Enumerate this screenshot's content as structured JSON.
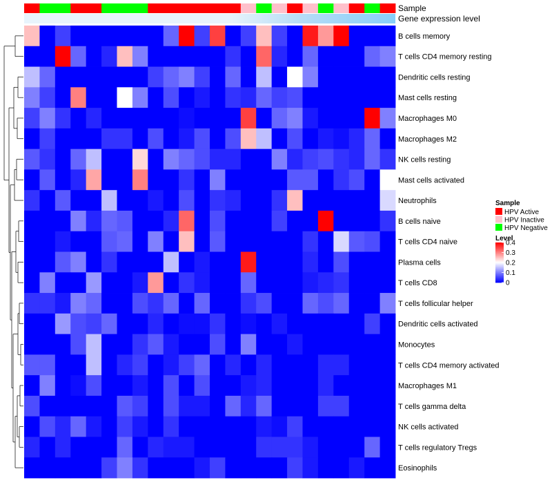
{
  "chart_data": {
    "type": "heatmap",
    "title": "",
    "annotation_titles": [
      "Sample",
      "Gene expression level"
    ],
    "sample_groups": [
      "Active",
      "Negative",
      "Negative",
      "Active",
      "Active",
      "Negative",
      "Negative",
      "Negative",
      "Active",
      "Active",
      "Active",
      "Active",
      "Active",
      "Active",
      "Inactive",
      "Negative",
      "Inactive",
      "Active",
      "Inactive",
      "Negative",
      "Inactive",
      "Active",
      "Negative",
      "Active"
    ],
    "rows": [
      "B cells memory",
      "T cells CD4 memory resting",
      "Dendritic cells resting",
      "Mast cells resting",
      "Macrophages M0",
      "Macrophages M2",
      "NK cells resting",
      "Mast cells activated",
      "Neutrophils",
      "B cells naive",
      "T cells CD4 naive",
      "Plasma cells",
      "T cells CD8",
      "T cells follicular helper",
      "Dendritic cells activated",
      "Monocytes",
      "T cells CD4 memory activated",
      "Macrophages M1",
      "T cells gamma delta",
      "NK cells activated",
      "T cells regulatory  Tregs",
      "Eosinophils"
    ],
    "values": [
      [
        0.25,
        0,
        0.05,
        0,
        0,
        0,
        0,
        0,
        0,
        0.08,
        0.4,
        0.05,
        0.35,
        0,
        0.05,
        0.25,
        0.05,
        0,
        0.38,
        0.28,
        0.4,
        0,
        0,
        0
      ],
      [
        0,
        0,
        0.4,
        0.08,
        0,
        0.03,
        0.25,
        0.1,
        0,
        0,
        0,
        0,
        0,
        0.04,
        0,
        0.32,
        0.03,
        0,
        0.08,
        0,
        0,
        0,
        0.08,
        0.1
      ],
      [
        0.15,
        0.08,
        0,
        0,
        0,
        0,
        0,
        0,
        0.05,
        0.08,
        0.1,
        0.05,
        0,
        0.08,
        0,
        0.15,
        0,
        0.2,
        0.1,
        0,
        0,
        0,
        0,
        0
      ],
      [
        0.1,
        0.05,
        0,
        0.3,
        0,
        0,
        0.2,
        0.1,
        0,
        0.06,
        0,
        0.02,
        0,
        0.04,
        0.03,
        0.08,
        0.05,
        0.06,
        0,
        0,
        0,
        0,
        0,
        0
      ],
      [
        0.05,
        0.1,
        0.04,
        0,
        0.03,
        0,
        0,
        0,
        0,
        0,
        0.01,
        0,
        0,
        0,
        0.35,
        0,
        0.08,
        0.1,
        0.02,
        0,
        0,
        0,
        0.4,
        0.1
      ],
      [
        0,
        0.05,
        0,
        0,
        0,
        0.04,
        0.04,
        0,
        0.06,
        0,
        0.02,
        0.06,
        0,
        0.06,
        0.25,
        0.15,
        0,
        0.06,
        0,
        0.02,
        0.01,
        0.03,
        0.08,
        0
      ],
      [
        0.07,
        0.04,
        0,
        0.08,
        0.15,
        0,
        0,
        0.23,
        0,
        0.1,
        0.08,
        0.06,
        0.03,
        0.03,
        0,
        0,
        0.1,
        0.03,
        0.05,
        0.06,
        0.04,
        0.03,
        0.08,
        0.04
      ],
      [
        0,
        0.07,
        0,
        0.03,
        0.27,
        0,
        0,
        0.3,
        0,
        0,
        0.04,
        0,
        0.1,
        0,
        0,
        0,
        0,
        0.07,
        0.07,
        0,
        0.04,
        0.06,
        0,
        0.2
      ],
      [
        0.04,
        0,
        0.07,
        0,
        0,
        0.15,
        0,
        0,
        0.02,
        0,
        0.06,
        0,
        0.04,
        0.03,
        0,
        0,
        0.04,
        0.25,
        0,
        0,
        0,
        0,
        0,
        0.17
      ],
      [
        0,
        0,
        0,
        0.1,
        0.03,
        0.08,
        0.07,
        0,
        0,
        0.03,
        0.32,
        0,
        0.06,
        0,
        0,
        0,
        0.05,
        0,
        0,
        0.4,
        0,
        0,
        0,
        0.04
      ],
      [
        0,
        0,
        0.02,
        0,
        0,
        0.07,
        0.08,
        0,
        0.1,
        0,
        0.25,
        0,
        0.07,
        0,
        0,
        0,
        0,
        0,
        0.04,
        0,
        0.17,
        0.07,
        0.06,
        0
      ],
      [
        0,
        0,
        0.07,
        0.1,
        0,
        0.04,
        0,
        0,
        0,
        0.15,
        0,
        0.02,
        0,
        0,
        0.38,
        0,
        0,
        0,
        0.03,
        0,
        0.06,
        0,
        0,
        0
      ],
      [
        0,
        0.1,
        0,
        0,
        0.12,
        0,
        0,
        0.02,
        0.28,
        0,
        0.04,
        0.02,
        0,
        0,
        0.08,
        0,
        0,
        0,
        0.02,
        0.03,
        0.04,
        0,
        0,
        0
      ],
      [
        0.04,
        0.04,
        0.02,
        0.1,
        0.08,
        0,
        0,
        0.06,
        0.04,
        0.08,
        0,
        0.08,
        0,
        0,
        0.04,
        0.06,
        0,
        0,
        0.08,
        0.06,
        0.08,
        0,
        0,
        0.1
      ],
      [
        0,
        0,
        0.12,
        0.06,
        0.05,
        0.08,
        0,
        0,
        0.03,
        0,
        0.01,
        0.01,
        0.04,
        0,
        0.01,
        0,
        0.02,
        0,
        0,
        0,
        0,
        0,
        0.05,
        0
      ],
      [
        0,
        0,
        0,
        0.06,
        0.15,
        0,
        0,
        0.04,
        0.07,
        0.02,
        0,
        0,
        0.06,
        0,
        0.1,
        0,
        0,
        0.02,
        0,
        0,
        0,
        0,
        0,
        0
      ],
      [
        0.07,
        0.07,
        0,
        0,
        0.15,
        0,
        0.03,
        0.05,
        0,
        0.02,
        0.05,
        0.08,
        0,
        0.03,
        0,
        0.03,
        0,
        0,
        0,
        0.03,
        0.03,
        0,
        0,
        0
      ],
      [
        0,
        0.1,
        0,
        0.01,
        0.06,
        0,
        0,
        0.02,
        0,
        0.06,
        0,
        0.06,
        0,
        0,
        0.02,
        0.03,
        0,
        0,
        0,
        0.03,
        0,
        0,
        0,
        0
      ],
      [
        0.06,
        0,
        0,
        0,
        0,
        0,
        0.07,
        0.05,
        0,
        0.06,
        0.02,
        0.02,
        0,
        0.08,
        0.03,
        0.08,
        0,
        0,
        0,
        0.05,
        0.05,
        0,
        0,
        0
      ],
      [
        0,
        0.06,
        0.03,
        0.08,
        0.02,
        0,
        0.05,
        0.02,
        0,
        0.04,
        0,
        0,
        0,
        0,
        0,
        0.02,
        0.01,
        0.05,
        0,
        0,
        0,
        0,
        0,
        0
      ],
      [
        0.03,
        0,
        0.03,
        0,
        0,
        0,
        0.08,
        0,
        0.03,
        0.02,
        0.02,
        0,
        0,
        0,
        0,
        0.04,
        0.04,
        0.04,
        0.02,
        0,
        0,
        0,
        0.08,
        0
      ],
      [
        0,
        0,
        0,
        0,
        0,
        0.05,
        0.1,
        0.04,
        0,
        0,
        0,
        0.02,
        0.05,
        0,
        0,
        0,
        0,
        0.05,
        0.02,
        0,
        0,
        0.02,
        0,
        0
      ]
    ],
    "color_scale": {
      "min": 0,
      "max": 0.4,
      "colors": [
        "#0000ff",
        "#ffffff",
        "#ff0000"
      ]
    },
    "legend": {
      "sample_title": "Sample",
      "sample_entries": [
        {
          "key": "Active",
          "label": "HPV Active",
          "color": "#ff0000"
        },
        {
          "key": "Inactive",
          "label": "HPV Inactive",
          "color": "#ffc0cb"
        },
        {
          "key": "Negative",
          "label": "HPV Negative",
          "color": "#00ff00"
        }
      ],
      "level_title": "Level",
      "level_ticks": [
        "0.4",
        "0.3",
        "0.2",
        "0.1",
        "0"
      ],
      "level_tick_values": [
        0.4,
        0.3,
        0.2,
        0.1,
        0
      ]
    },
    "gene_expression_color": "#87cefa",
    "gene_expression_light_color": "#e8f4fc"
  }
}
